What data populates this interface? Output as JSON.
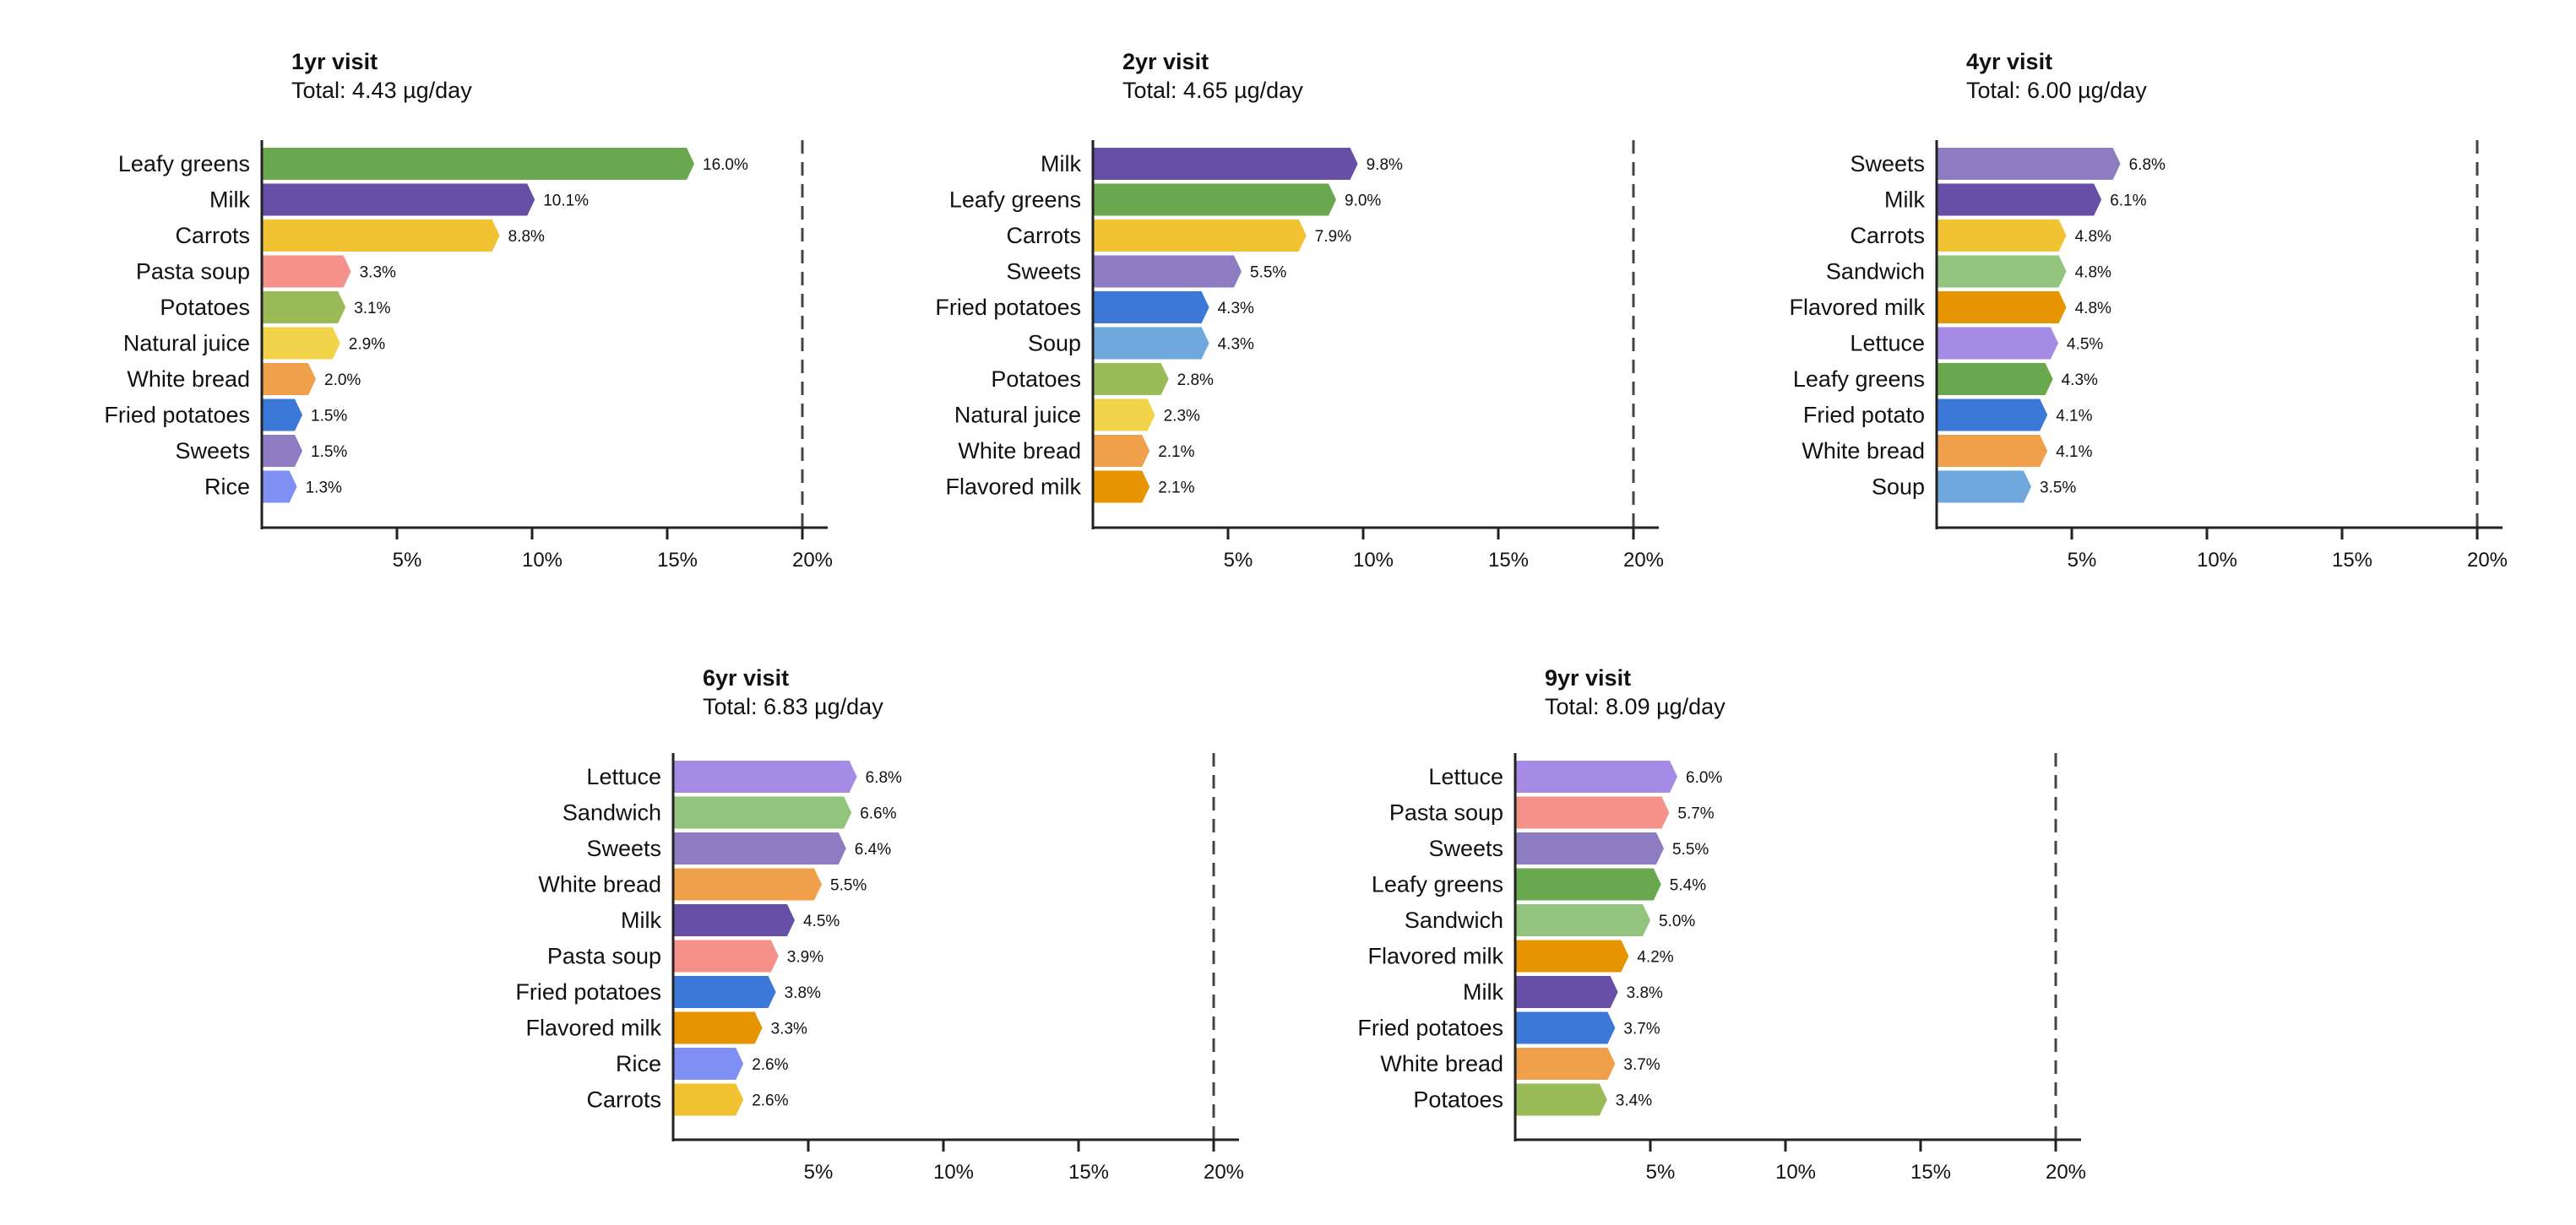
{
  "chart_data": [
    {
      "type": "bar",
      "orientation": "horizontal",
      "title": "1yr visit",
      "subtitle": "Total: 4.43 µg/day",
      "categories": [
        "Leafy greens",
        "Milk",
        "Carrots",
        "Pasta soup",
        "Potatoes",
        "Natural juice",
        "White bread",
        "Fried potatoes",
        "Sweets",
        "Rice"
      ],
      "values": [
        16.0,
        10.1,
        8.8,
        3.3,
        3.1,
        2.9,
        2.0,
        1.5,
        1.5,
        1.3
      ],
      "labels": [
        "16.0%",
        "10.1%",
        "8.8%",
        "3.3%",
        "3.1%",
        "2.9%",
        "2.0%",
        "1.5%",
        "1.5%",
        "1.3%"
      ],
      "colors": [
        "#6aa84f",
        "#674ea7",
        "#f1c232",
        "#f4928a",
        "#9bbb59",
        "#f3d34a",
        "#f0a04b",
        "#3c78d8",
        "#8e7cc3",
        "#7f8ff4"
      ],
      "xlim": [
        0,
        20
      ],
      "xticks": [
        "5%",
        "10%",
        "15%",
        "20%"
      ],
      "xtick_values": [
        5,
        10,
        15,
        20
      ],
      "reference_line": 20
    },
    {
      "type": "bar",
      "orientation": "horizontal",
      "title": "2yr visit",
      "subtitle": "Total: 4.65 µg/day",
      "categories": [
        "Milk",
        "Leafy greens",
        "Carrots",
        "Sweets",
        "Fried potatoes",
        "Soup",
        "Potatoes",
        "Natural juice",
        "White bread",
        "Flavored milk"
      ],
      "values": [
        9.8,
        9.0,
        7.9,
        5.5,
        4.3,
        4.3,
        2.8,
        2.3,
        2.1,
        2.1
      ],
      "labels": [
        "9.8%",
        "9.0%",
        "7.9%",
        "5.5%",
        "4.3%",
        "4.3%",
        "2.8%",
        "2.3%",
        "2.1%",
        "2.1%"
      ],
      "colors": [
        "#674ea7",
        "#6aa84f",
        "#f1c232",
        "#8e7cc3",
        "#3c78d8",
        "#6fa8dc",
        "#9bbb59",
        "#f3d34a",
        "#f0a04b",
        "#e69500"
      ],
      "xlim": [
        0,
        20
      ],
      "xticks": [
        "5%",
        "10%",
        "15%",
        "20%"
      ],
      "xtick_values": [
        5,
        10,
        15,
        20
      ],
      "reference_line": 20
    },
    {
      "type": "bar",
      "orientation": "horizontal",
      "title": "4yr visit",
      "subtitle": "Total: 6.00 µg/day",
      "categories": [
        "Sweets",
        "Milk",
        "Carrots",
        "Sandwich",
        "Flavored milk",
        "Lettuce",
        "Leafy greens",
        "Fried potato",
        "White bread",
        "Soup"
      ],
      "values": [
        6.8,
        6.1,
        4.8,
        4.8,
        4.8,
        4.5,
        4.3,
        4.1,
        4.1,
        3.5
      ],
      "labels": [
        "6.8%",
        "6.1%",
        "4.8%",
        "4.8%",
        "4.8%",
        "4.5%",
        "4.3%",
        "4.1%",
        "4.1%",
        "3.5%"
      ],
      "colors": [
        "#8e7cc3",
        "#674ea7",
        "#f1c232",
        "#93c47d",
        "#e69500",
        "#a58be6",
        "#6aa84f",
        "#3c78d8",
        "#f0a04b",
        "#6fa8dc"
      ],
      "xlim": [
        0,
        20
      ],
      "xticks": [
        "5%",
        "10%",
        "15%",
        "20%"
      ],
      "xtick_values": [
        5,
        10,
        15,
        20
      ],
      "reference_line": 20
    },
    {
      "type": "bar",
      "orientation": "horizontal",
      "title": "6yr visit",
      "subtitle": "Total: 6.83 µg/day",
      "categories": [
        "Lettuce",
        "Sandwich",
        "Sweets",
        "White bread",
        "Milk",
        "Pasta soup",
        "Fried potatoes",
        "Flavored milk",
        "Rice",
        "Carrots"
      ],
      "values": [
        6.8,
        6.6,
        6.4,
        5.5,
        4.5,
        3.9,
        3.8,
        3.3,
        2.6,
        2.6
      ],
      "labels": [
        "6.8%",
        "6.6%",
        "6.4%",
        "5.5%",
        "4.5%",
        "3.9%",
        "3.8%",
        "3.3%",
        "2.6%",
        "2.6%"
      ],
      "colors": [
        "#a58be6",
        "#93c47d",
        "#8e7cc3",
        "#f0a04b",
        "#674ea7",
        "#f4928a",
        "#3c78d8",
        "#e69500",
        "#7f8ff4",
        "#f1c232"
      ],
      "xlim": [
        0,
        20
      ],
      "xticks": [
        "5%",
        "10%",
        "15%",
        "20%"
      ],
      "xtick_values": [
        5,
        10,
        15,
        20
      ],
      "reference_line": 20
    },
    {
      "type": "bar",
      "orientation": "horizontal",
      "title": "9yr visit",
      "subtitle": "Total: 8.09 µg/day",
      "categories": [
        "Lettuce",
        "Pasta soup",
        "Sweets",
        "Leafy greens",
        "Sandwich",
        "Flavored milk",
        "Milk",
        "Fried potatoes",
        "White bread",
        "Potatoes"
      ],
      "values": [
        6.0,
        5.7,
        5.5,
        5.4,
        5.0,
        4.2,
        3.8,
        3.7,
        3.7,
        3.4
      ],
      "labels": [
        "6.0%",
        "5.7%",
        "5.5%",
        "5.4%",
        "5.0%",
        "4.2%",
        "3.8%",
        "3.7%",
        "3.7%",
        "3.4%"
      ],
      "colors": [
        "#a58be6",
        "#f4928a",
        "#8e7cc3",
        "#6aa84f",
        "#93c47d",
        "#e69500",
        "#674ea7",
        "#3c78d8",
        "#f0a04b",
        "#9bbb59"
      ],
      "xlim": [
        0,
        20
      ],
      "xticks": [
        "5%",
        "10%",
        "15%",
        "20%"
      ],
      "xtick_values": [
        5,
        10,
        15,
        20
      ],
      "reference_line": 20
    }
  ]
}
